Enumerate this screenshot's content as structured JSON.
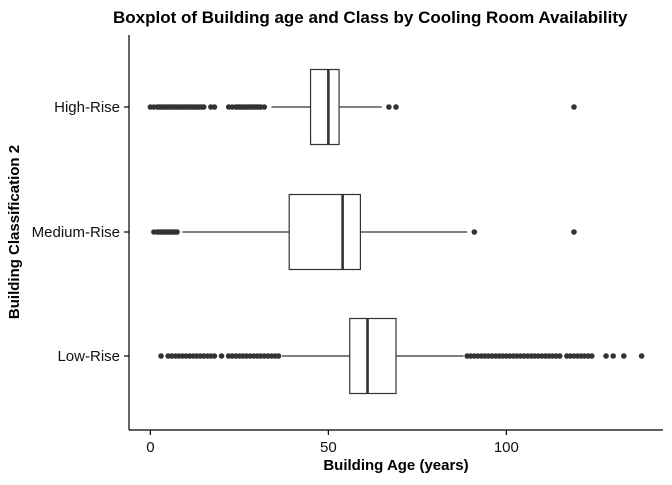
{
  "chart_data": {
    "type": "boxplot",
    "title": "Boxplot of Building age and Class by Cooling Room Availability",
    "xlabel": "Building Age (years)",
    "ylabel": "Building Classification 2",
    "xlim": [
      -6,
      144
    ],
    "x_ticks": [
      0,
      50,
      100
    ],
    "x_tick_labels": [
      "0",
      "50",
      "100"
    ],
    "categories": [
      "High-Rise",
      "Medium-Rise",
      "Low-Rise"
    ],
    "boxes": [
      {
        "category": "High-Rise",
        "whisker_low": 34,
        "q1": 45,
        "median": 50,
        "q3": 53,
        "whisker_high": 65,
        "outliers": [
          0,
          1,
          2,
          2.5,
          3,
          3.5,
          4,
          4.5,
          5,
          5.5,
          6,
          6.5,
          7,
          7.5,
          8,
          8.5,
          9,
          9.5,
          10,
          10.5,
          11,
          11.5,
          12,
          12.5,
          13,
          13.5,
          14,
          14.5,
          15,
          17,
          18,
          22,
          23,
          24,
          24.5,
          25,
          25.5,
          26,
          26.5,
          27,
          27.5,
          28,
          28.5,
          29,
          29.5,
          30,
          30.5,
          31,
          32,
          67,
          69,
          119
        ]
      },
      {
        "category": "Medium-Rise",
        "whisker_low": 9,
        "q1": 39,
        "median": 54,
        "q3": 59,
        "whisker_high": 89,
        "outliers": [
          1,
          2,
          2.5,
          3,
          3.5,
          4,
          4.5,
          5,
          5.5,
          6,
          6.5,
          7,
          7.5,
          91,
          119
        ]
      },
      {
        "category": "Low-Rise",
        "whisker_low": 37,
        "q1": 56,
        "median": 61,
        "q3": 69,
        "whisker_high": 88,
        "outliers": [
          3,
          5,
          6,
          7,
          8,
          9,
          10,
          11,
          12,
          13,
          14,
          15,
          16,
          17,
          18,
          20,
          22,
          23,
          24,
          25,
          26,
          27,
          28,
          29,
          30,
          31,
          32,
          33,
          34,
          35,
          36,
          89,
          90,
          91,
          92,
          93,
          94,
          95,
          96,
          97,
          98,
          99,
          100,
          101,
          102,
          103,
          104,
          105,
          106,
          107,
          108,
          109,
          110,
          111,
          112,
          113,
          114,
          115,
          117,
          118,
          119,
          120,
          121,
          122,
          123,
          124,
          128,
          130,
          133,
          138
        ]
      }
    ]
  }
}
